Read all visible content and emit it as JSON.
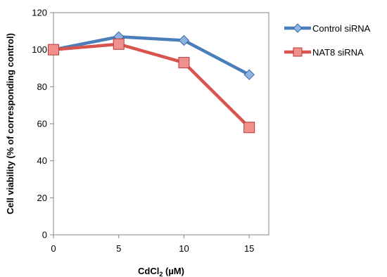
{
  "chart_data": {
    "type": "line",
    "title": "",
    "xlabel": "CdCl",
    "xlabel_subscript": "2",
    "xlabel_unit": " (µM)",
    "ylabel": "Cell viability (% of corresponding control)",
    "x": [
      0,
      5,
      10,
      15
    ],
    "x_ticks": [
      "0",
      "5",
      "10",
      "15"
    ],
    "y_ticks": [
      "0",
      "20",
      "40",
      "60",
      "80",
      "100",
      "120"
    ],
    "xlim": [
      0,
      16.5
    ],
    "ylim": [
      0,
      120
    ],
    "grid": false,
    "legend_position": "right",
    "series": [
      {
        "name": "Control siRNA",
        "values": [
          100,
          107,
          105,
          86.5
        ],
        "color": "#4a7ebb",
        "marker": "diamond"
      },
      {
        "name": "NAT8 siRNA",
        "values": [
          100,
          103,
          93,
          58
        ],
        "color": "#d9534f",
        "marker": "square"
      }
    ]
  }
}
